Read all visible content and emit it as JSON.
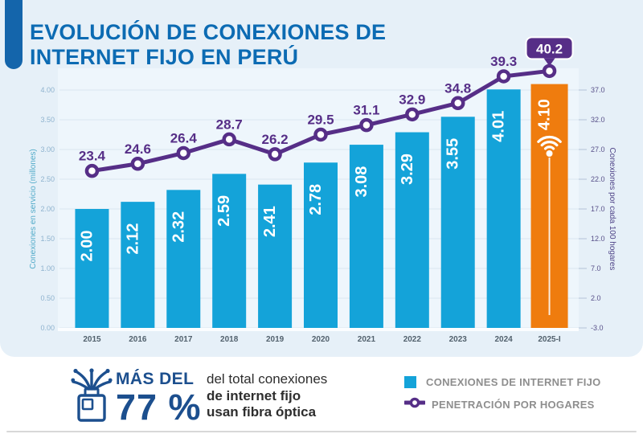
{
  "header": {
    "title_line1": "EVOLUCIÓN DE CONEXIONES DE",
    "title_line2": "INTERNET FIJO EN PERÚ"
  },
  "chart_data": {
    "type": "bar+line",
    "title": "EVOLUCIÓN DE CONEXIONES DE INTERNET FIJO EN PERÚ",
    "categories": [
      "2015",
      "2016",
      "2017",
      "2018",
      "2019",
      "2020",
      "2021",
      "2022",
      "2023",
      "2024",
      "2025-I"
    ],
    "series": [
      {
        "name": "CONEXIONES DE INTERNET FIJO",
        "type": "bar",
        "axis": "left",
        "values": [
          2.0,
          2.12,
          2.32,
          2.59,
          2.41,
          2.78,
          3.08,
          3.29,
          3.55,
          4.01,
          4.1
        ]
      },
      {
        "name": "PENETRACIÓN POR HOGARES",
        "type": "line",
        "axis": "right",
        "values": [
          23.4,
          24.6,
          26.4,
          28.7,
          26.2,
          29.5,
          31.1,
          32.9,
          34.8,
          39.3,
          40.2
        ]
      }
    ],
    "highlight_index": 10,
    "left_axis": {
      "label": "Conexiones en servicio (millones)",
      "ticks": [
        "4.00",
        "3.50",
        "3.00",
        "2.50",
        "2.00",
        "1.50",
        "1.00",
        "0.50",
        "0.00"
      ],
      "min": 0,
      "max": 4
    },
    "right_axis": {
      "label": "Conexiones por cada 100 hogares",
      "ticks": [
        "37.0",
        "32.0",
        "27.0",
        "22.0",
        "17.0",
        "12.0",
        "7.0",
        "2.0",
        "-3.0"
      ],
      "min": -3,
      "max": 37
    },
    "grid": true,
    "legend_position": "bottom",
    "colors": {
      "bar": "#14a3d9",
      "bar_highlight": "#ef7c0e",
      "line": "#562e87",
      "badge": "#562e87",
      "title": "#0c6bb3",
      "card_bg": "#e6f0f8",
      "plot_bg": "#eef6fc",
      "accent": "#1465ab",
      "stat_navy": "#1c4f8e"
    }
  },
  "footer": {
    "stat_prefix": "MÁS DEL",
    "stat_value": "77 %",
    "desc_line1": "del total conexiones",
    "desc_line2": "de internet fijo",
    "desc_line3": "usan fibra óptica"
  }
}
